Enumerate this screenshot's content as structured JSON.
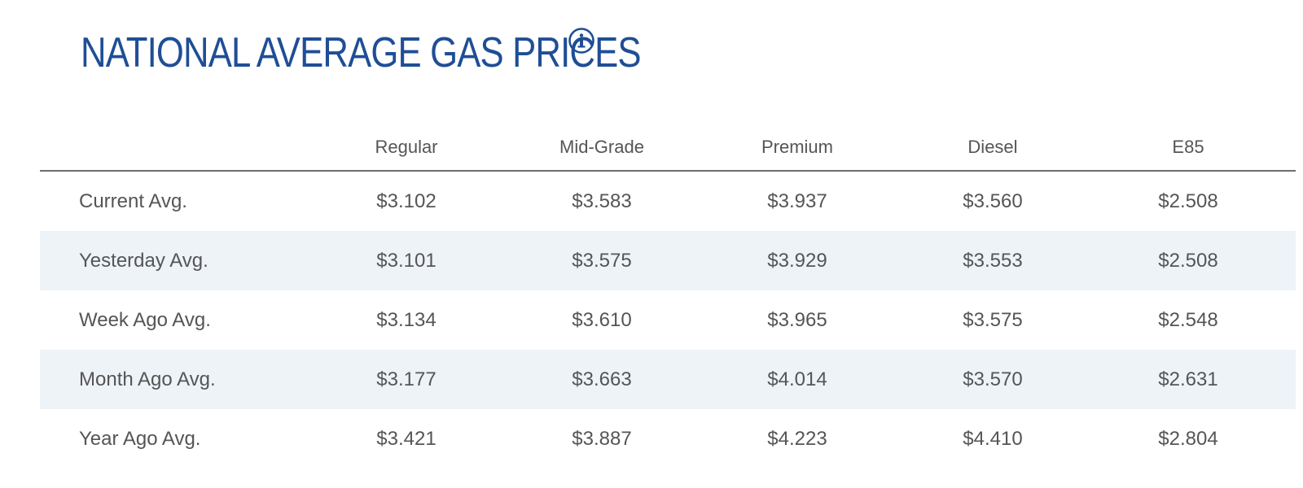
{
  "title": "NATIONAL AVERAGE GAS PRICES",
  "info_icon": "info-circle-icon",
  "colors": {
    "title": "#1f4e96",
    "alt_row": "#eef3f8",
    "text": "#555555"
  },
  "columns": [
    "Regular",
    "Mid-Grade",
    "Premium",
    "Diesel",
    "E85"
  ],
  "rows": [
    {
      "label": "Current Avg.",
      "values": [
        "$3.102",
        "$3.583",
        "$3.937",
        "$3.560",
        "$2.508"
      ]
    },
    {
      "label": "Yesterday Avg.",
      "values": [
        "$3.101",
        "$3.575",
        "$3.929",
        "$3.553",
        "$2.508"
      ]
    },
    {
      "label": "Week Ago Avg.",
      "values": [
        "$3.134",
        "$3.610",
        "$3.965",
        "$3.575",
        "$2.548"
      ]
    },
    {
      "label": "Month Ago Avg.",
      "values": [
        "$3.177",
        "$3.663",
        "$4.014",
        "$3.570",
        "$2.631"
      ]
    },
    {
      "label": "Year Ago Avg.",
      "values": [
        "$3.421",
        "$3.887",
        "$4.223",
        "$4.410",
        "$2.804"
      ]
    }
  ]
}
